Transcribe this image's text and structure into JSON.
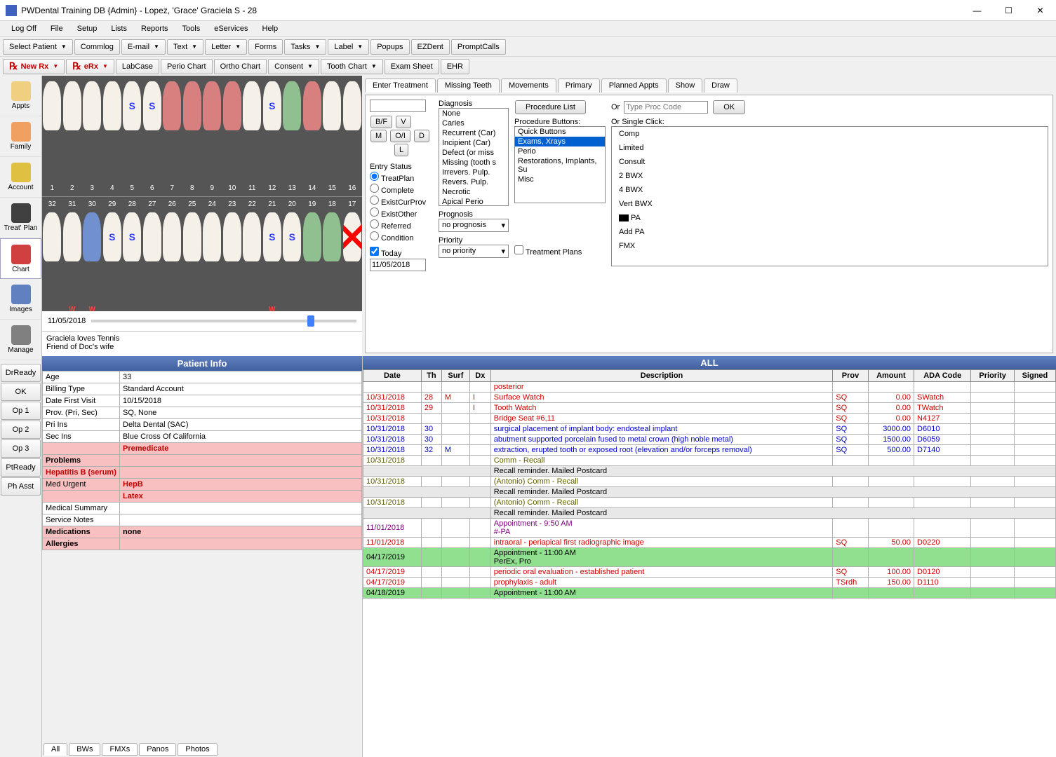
{
  "window": {
    "title": "PWDental Training DB {Admin} - Lopez, 'Grace' Graciela S - 28"
  },
  "menus": [
    "Log Off",
    "File",
    "Setup",
    "Lists",
    "Reports",
    "Tools",
    "eServices",
    "Help"
  ],
  "toolbar1": [
    {
      "label": "Select Patient",
      "dd": true
    },
    {
      "label": "Commlog"
    },
    {
      "label": "E-mail",
      "dd": true
    },
    {
      "label": "Text",
      "dd": true
    },
    {
      "label": "Letter",
      "dd": true
    },
    {
      "label": "Forms"
    },
    {
      "label": "Tasks",
      "dd": true
    },
    {
      "label": "Label",
      "dd": true
    },
    {
      "label": "Popups"
    },
    {
      "label": "EZDent"
    },
    {
      "label": "PromptCalls"
    }
  ],
  "toolbar2": [
    {
      "label": "New Rx",
      "dd": true,
      "rx": true
    },
    {
      "label": "eRx",
      "dd": true,
      "rx": true
    },
    {
      "label": "LabCase"
    },
    {
      "label": "Perio Chart"
    },
    {
      "label": "Ortho Chart"
    },
    {
      "label": "Consent",
      "dd": true
    },
    {
      "label": "Tooth Chart",
      "dd": true
    },
    {
      "label": "Exam Sheet"
    },
    {
      "label": "EHR"
    }
  ],
  "leftnav": [
    {
      "label": "Appts",
      "color": "#f0d080"
    },
    {
      "label": "Family",
      "color": "#f0a060"
    },
    {
      "label": "Account",
      "color": "#e0c040"
    },
    {
      "label": "Treat' Plan",
      "color": "#404040"
    },
    {
      "label": "Chart",
      "color": "#d04040",
      "sel": true
    },
    {
      "label": "Images",
      "color": "#6080c0"
    },
    {
      "label": "Manage",
      "color": "#808080"
    }
  ],
  "statusBtns": [
    "DrReady",
    "OK",
    "Op 1",
    "Op 2",
    "Op 3",
    "PtReady",
    "Ph Asst"
  ],
  "slider": {
    "date": "11/05/2018"
  },
  "notes": [
    "Graciela loves Tennis",
    "Friend of Doc's wife"
  ],
  "tabs": [
    "Enter Treatment",
    "Missing Teeth",
    "Movements",
    "Primary",
    "Planned Appts",
    "Show",
    "Draw"
  ],
  "btnGrid": {
    "bf": "B/F",
    "v": "V",
    "m": "M",
    "oi": "O/I",
    "d": "D",
    "l": "L"
  },
  "entryStatus": {
    "label": "Entry Status",
    "opts": [
      "TreatPlan",
      "Complete",
      "ExistCurProv",
      "ExistOther",
      "Referred",
      "Condition"
    ],
    "sel": 0
  },
  "today": {
    "label": "Today",
    "date": "11/05/2018"
  },
  "diagnosis": {
    "label": "Diagnosis",
    "opts": [
      "None",
      "Caries",
      "Recurrent (Car)",
      "Incipient (Car)",
      "Defect (or miss",
      "Missing (tooth s",
      "Irrevers. Pulp.",
      "Revers. Pulp.",
      "Necrotic",
      "Apical Perio"
    ]
  },
  "prognosis": {
    "label": "Prognosis",
    "value": "no prognosis"
  },
  "priority": {
    "label": "Priority",
    "value": "no priority"
  },
  "procList": {
    "btn": "Procedure List",
    "label": "Procedure Buttons:",
    "items": [
      "Quick Buttons",
      "Exams, Xrays",
      "Perio",
      "Restorations, Implants, Su",
      "Misc"
    ],
    "sel": 1
  },
  "treatmentPlans": "Treatment Plans",
  "orType": {
    "label": "Or",
    "placeholder": "Type Proc Code",
    "ok": "OK",
    "single": "Or Single Click:"
  },
  "singleClick": [
    "Comp",
    "Limited",
    "Consult",
    "2 BWX",
    "4 BWX",
    "Vert BWX",
    "PA",
    "Add PA",
    "FMX"
  ],
  "allHeader": "ALL",
  "procCols": [
    "Date",
    "Th",
    "Surf",
    "Dx",
    "Description",
    "Prov",
    "Amount",
    "ADA Code",
    "Priority",
    "Signed"
  ],
  "procRows": [
    {
      "cls": "red",
      "desc": "posterior"
    },
    {
      "cls": "red",
      "date": "10/31/2018",
      "th": "28",
      "surf": "M",
      "dx": "I",
      "desc": "Surface Watch",
      "prov": "SQ",
      "amt": "0.00",
      "code": "SWatch"
    },
    {
      "cls": "red",
      "date": "10/31/2018",
      "th": "29",
      "dx": "I",
      "desc": "Tooth Watch",
      "prov": "SQ",
      "amt": "0.00",
      "code": "TWatch"
    },
    {
      "cls": "red",
      "date": "10/31/2018",
      "desc": "Bridge Seat #6,11",
      "prov": "SQ",
      "amt": "0.00",
      "code": "N4127"
    },
    {
      "cls": "blue",
      "date": "10/31/2018",
      "th": "30",
      "desc": "surgical placement of implant body: endosteal implant",
      "prov": "SQ",
      "amt": "3000.00",
      "code": "D6010"
    },
    {
      "cls": "blue",
      "date": "10/31/2018",
      "th": "30",
      "desc": "abutment supported porcelain fused to metal crown (high noble metal)",
      "prov": "SQ",
      "amt": "1500.00",
      "code": "D6059"
    },
    {
      "cls": "blue",
      "date": "10/31/2018",
      "th": "32",
      "surf": "M",
      "desc": "extraction, erupted tooth or exposed root (elevation and/or forceps removal)",
      "prov": "SQ",
      "amt": "500.00",
      "code": "D7140"
    },
    {
      "cls": "olive",
      "date": "10/31/2018",
      "desc": "Comm - Recall"
    },
    {
      "cls": "recall",
      "desc": "Recall reminder.  Mailed Postcard",
      "span": true
    },
    {
      "cls": "olive",
      "date": "10/31/2018",
      "desc": "(Antonio) Comm - Recall"
    },
    {
      "cls": "recall",
      "desc": "Recall reminder.  Mailed Postcard",
      "span": true
    },
    {
      "cls": "olive",
      "date": "10/31/2018",
      "desc": "(Antonio) Comm - Recall"
    },
    {
      "cls": "recall",
      "desc": "Recall reminder.  Mailed Postcard",
      "span": true
    },
    {
      "cls": "purple",
      "date": "11/01/2018",
      "desc": "Appointment - 9:50 AM\n#-PA"
    },
    {
      "cls": "red",
      "date": "11/01/2018",
      "desc": "intraoral - periapical first radiographic image",
      "prov": "SQ",
      "amt": "50.00",
      "code": "D0220"
    },
    {
      "cls": "green-bg",
      "date": "04/17/2019",
      "desc": "Appointment - 11:00 AM\nPerEx, Pro"
    },
    {
      "cls": "red",
      "date": "04/17/2019",
      "desc": "periodic oral evaluation - established patient",
      "prov": "SQ",
      "amt": "100.00",
      "code": "D0120"
    },
    {
      "cls": "red",
      "date": "04/17/2019",
      "desc": "prophylaxis - adult",
      "prov": "TSrdh",
      "amt": "150.00",
      "code": "D1110"
    },
    {
      "cls": "green-bg",
      "date": "04/18/2019",
      "desc": "Appointment - 11:00 AM"
    }
  ],
  "pinfo": {
    "header": "Patient Info",
    "rows": [
      {
        "k": "Age",
        "v": "33"
      },
      {
        "k": "Billing Type",
        "v": "Standard Account"
      },
      {
        "k": "Date First Visit",
        "v": "10/15/2018"
      },
      {
        "k": "Prov. (Pri, Sec)",
        "v": "SQ, None"
      },
      {
        "k": "Pri Ins",
        "v": "Delta Dental (SAC)"
      },
      {
        "k": "Sec Ins",
        "v": "Blue Cross Of California"
      },
      {
        "k": "",
        "v": "Premedicate",
        "cls": "premedicate"
      },
      {
        "k": "Problems",
        "v": "",
        "cls": "problems"
      },
      {
        "k": "Hepatitis B (serum)",
        "v": "",
        "cls": "hep"
      },
      {
        "k": "Med Urgent",
        "v": "HepB",
        "cls": "pink"
      },
      {
        "k": "",
        "v": "Latex",
        "cls": "pink"
      },
      {
        "k": "Medical Summary",
        "v": ""
      },
      {
        "k": "Service Notes",
        "v": ""
      },
      {
        "k": "Medications",
        "v": "none",
        "cls": "problems"
      },
      {
        "k": "Allergies",
        "v": "",
        "cls": "problems"
      }
    ]
  },
  "imgTabs": [
    "All",
    "BWs",
    "FMXs",
    "Panos",
    "Photos"
  ]
}
